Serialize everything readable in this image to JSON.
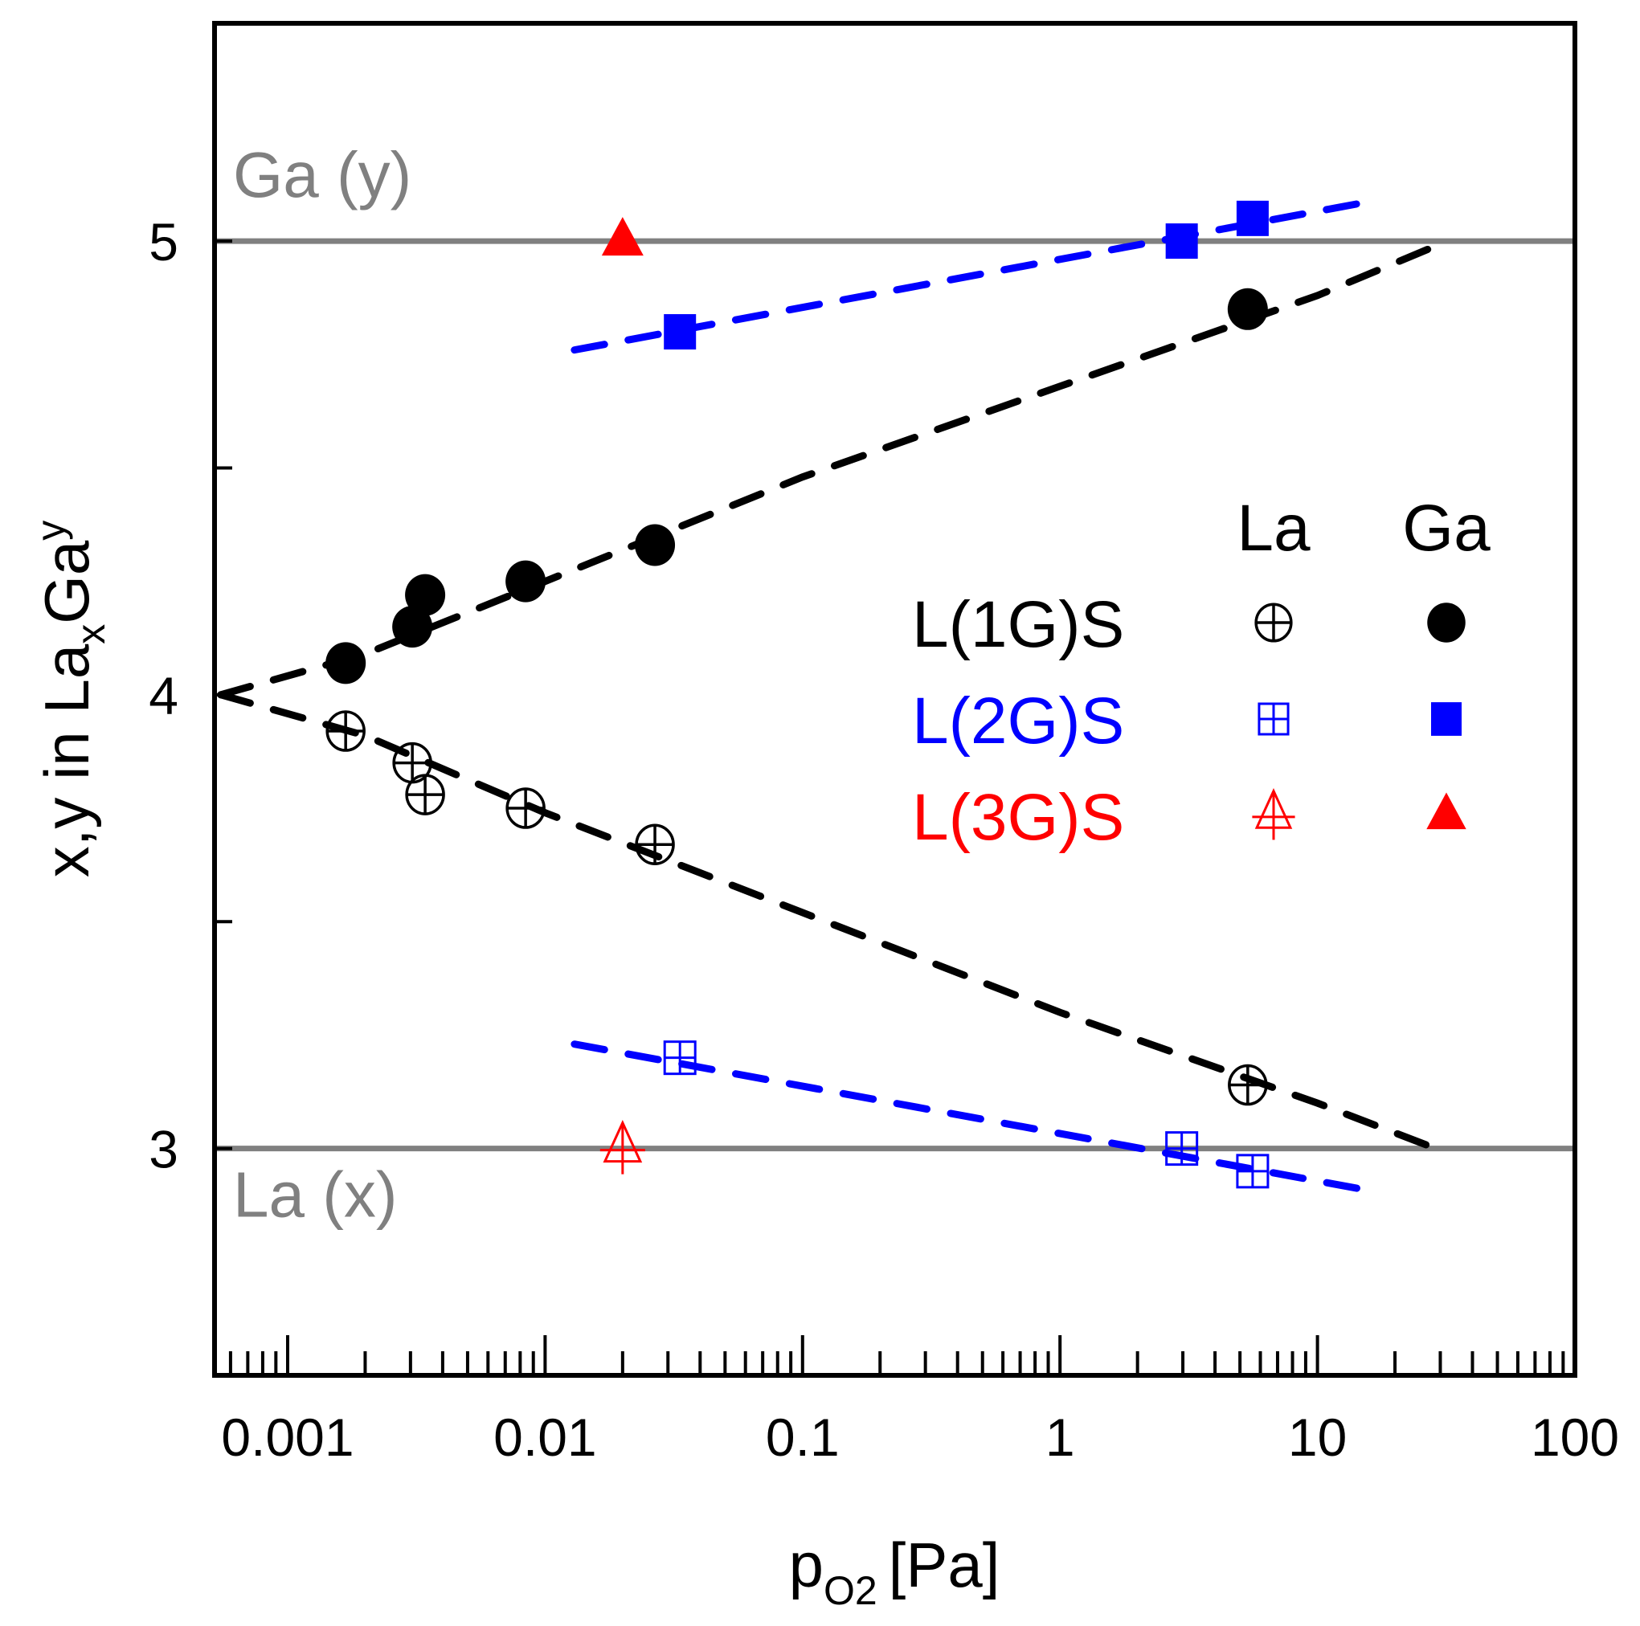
{
  "chart_data": {
    "type": "scatter",
    "title": "",
    "xlabel": "p",
    "xlabel_sub": "O2",
    "xlabel_unit": "[Pa]",
    "ylabel_parts": [
      "x,y in La",
      "x",
      "Ga",
      "y"
    ],
    "xscale": "log",
    "xlim": [
      0.00052,
      100
    ],
    "ylim": [
      2.5,
      5.48
    ],
    "x_ticks": [
      0.001,
      0.01,
      0.1,
      1,
      10,
      100
    ],
    "x_tick_labels": [
      "0.001",
      "0.01",
      "0.1",
      "1",
      "10",
      "100"
    ],
    "y_ticks": [
      3,
      3.5,
      4,
      4.5,
      5
    ],
    "y_tick_labels": [
      "3",
      "",
      "4",
      "",
      "5"
    ],
    "reference_lines": [
      {
        "label": "Ga (y)",
        "y": 5,
        "color": "#808080"
      },
      {
        "label": "La (x)",
        "y": 3,
        "color": "#808080"
      }
    ],
    "legend": {
      "placement": "center-right",
      "column_headers": [
        "La",
        "Ga"
      ],
      "rows": [
        {
          "label": "L(1G)S",
          "color": "#000000",
          "la_marker": "circle-cross",
          "ga_marker": "circle-filled"
        },
        {
          "label": "L(2G)S",
          "color": "#0000ff",
          "la_marker": "square-cross",
          "ga_marker": "square-filled"
        },
        {
          "label": "L(3G)S",
          "color": "#ff0000",
          "la_marker": "triangle-cross",
          "ga_marker": "triangle-filled"
        }
      ]
    },
    "series": [
      {
        "name": "L(1G)S Ga",
        "color": "#000000",
        "marker": "circle-filled",
        "x": [
          0.00168,
          0.00305,
          0.00342,
          0.0084,
          0.0267,
          5.36
        ],
        "y": [
          4.07,
          4.15,
          4.22,
          4.25,
          4.33,
          4.85
        ]
      },
      {
        "name": "L(1G)S La",
        "color": "#000000",
        "marker": "circle-cross",
        "x": [
          0.00168,
          0.00305,
          0.00342,
          0.0084,
          0.0267,
          5.36
        ],
        "y": [
          3.92,
          3.85,
          3.78,
          3.75,
          3.67,
          3.14
        ]
      },
      {
        "name": "L(2G)S Ga",
        "color": "#0000ff",
        "marker": "square-filled",
        "x": [
          0.0334,
          2.97,
          5.6
        ],
        "y": [
          4.8,
          5.0,
          5.05
        ]
      },
      {
        "name": "L(2G)S La",
        "color": "#0000ff",
        "marker": "square-cross",
        "x": [
          0.0334,
          2.97,
          5.6
        ],
        "y": [
          3.2,
          3.0,
          2.95
        ]
      },
      {
        "name": "L(3G)S Ga",
        "color": "#ff0000",
        "marker": "triangle-filled",
        "x": [
          0.02
        ],
        "y": [
          5.0
        ]
      },
      {
        "name": "L(3G)S La",
        "color": "#ff0000",
        "marker": "triangle-cross",
        "x": [
          0.02
        ],
        "y": [
          3.0
        ]
      }
    ],
    "fit_lines": [
      {
        "name": "L(1G)S Ga fit",
        "color": "#000000",
        "x": [
          0.00055,
          0.002,
          0.01,
          0.1,
          1,
          10,
          32
        ],
        "y": [
          4.0,
          4.09,
          4.25,
          4.48,
          4.68,
          4.88,
          5.0
        ]
      },
      {
        "name": "L(1G)S La fit",
        "color": "#000000",
        "x": [
          0.00055,
          0.002,
          0.01,
          0.1,
          1,
          10,
          32
        ],
        "y": [
          4.0,
          3.91,
          3.74,
          3.52,
          3.3,
          3.1,
          2.99
        ]
      },
      {
        "name": "L(2G)S Ga fit",
        "color": "#0000ff",
        "x": [
          0.013,
          17
        ],
        "y": [
          4.76,
          5.09
        ]
      },
      {
        "name": "L(2G)S La fit",
        "color": "#0000ff",
        "x": [
          0.013,
          15
        ],
        "y": [
          3.23,
          2.91
        ]
      }
    ]
  }
}
